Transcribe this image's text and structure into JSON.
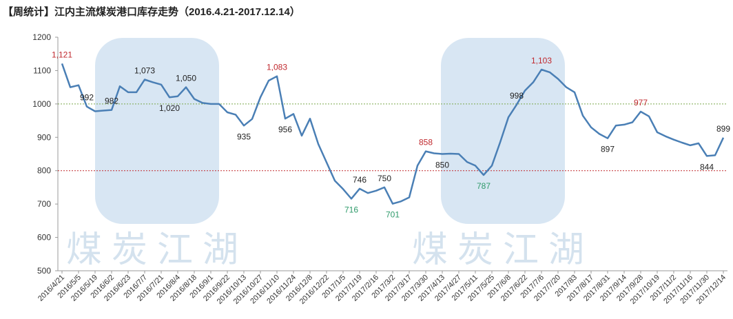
{
  "chart_data": {
    "type": "line",
    "title": "【周统计】江内主流煤炭港口库存走势（2016.4.21-2017.12.14）",
    "watermark": "煤炭江湖",
    "categories": [
      "2016/4/21",
      null,
      "2016/5/5",
      null,
      "2016/5/19",
      null,
      "2016/6/2",
      null,
      "2016/6/23",
      null,
      "2016/7/7",
      null,
      "2016/7/21",
      null,
      "2016/8/4",
      null,
      "2016/8/18",
      null,
      "2016/9/1",
      null,
      "2016/9/22",
      null,
      "2016/10/13",
      null,
      "2016/10/27",
      null,
      "2016/11/10",
      null,
      "2016/11/24",
      null,
      "2016/12/8",
      null,
      "2016/12/22",
      null,
      "2017/1/5",
      null,
      "2017/1/19",
      null,
      "2017/2/16",
      null,
      "2017/3/2",
      null,
      "2017/3/17",
      null,
      "2017/3/30",
      null,
      "2017/4/13",
      null,
      "2017/4/27",
      null,
      "2017/5/11",
      null,
      "2017/5/25",
      null,
      "2017/6/8",
      null,
      "2017/6/22",
      null,
      "2017/7/6",
      null,
      "2017/7/20",
      null,
      "2017/83",
      null,
      "2017/8/17",
      null,
      "2017/8/31",
      null,
      "2017/9/14",
      null,
      "2017/9/28",
      null,
      "2017/10/19",
      null,
      "2017/11/2",
      null,
      "2017/11/16",
      null,
      "2017/11/30",
      null,
      "2017/12/14"
    ],
    "values": [
      1121,
      1050,
      1056,
      992,
      978,
      980,
      982,
      1053,
      1035,
      1035,
      1073,
      1065,
      1058,
      1020,
      1023,
      1050,
      1015,
      1003,
      1000,
      1000,
      975,
      968,
      935,
      955,
      1020,
      1070,
      1083,
      956,
      970,
      905,
      956,
      880,
      825,
      770,
      745,
      716,
      746,
      733,
      740,
      750,
      701,
      708,
      720,
      815,
      858,
      852,
      850,
      851,
      850,
      826,
      815,
      787,
      815,
      885,
      960,
      998,
      1040,
      1065,
      1103,
      1095,
      1075,
      1050,
      1035,
      965,
      930,
      910,
      897,
      935,
      938,
      945,
      977,
      963,
      915,
      903,
      893,
      884,
      876,
      882,
      844,
      846,
      899
    ],
    "value_labels": [
      "1,121",
      null,
      null,
      "992",
      null,
      null,
      "982",
      null,
      null,
      null,
      "1,073",
      null,
      null,
      "1,020",
      null,
      "1,050",
      null,
      null,
      null,
      null,
      null,
      null,
      "935",
      null,
      null,
      null,
      "1,083",
      "956",
      null,
      null,
      null,
      null,
      null,
      null,
      null,
      "716",
      "746",
      null,
      null,
      "750",
      "701",
      null,
      null,
      null,
      "858",
      null,
      "850",
      null,
      null,
      null,
      null,
      "787",
      null,
      null,
      null,
      "998",
      null,
      null,
      "1,103",
      null,
      null,
      null,
      null,
      null,
      null,
      null,
      "897",
      null,
      null,
      null,
      "977",
      null,
      null,
      null,
      null,
      null,
      null,
      null,
      "844",
      null,
      "899"
    ],
    "label_colors": [
      "#c0282d",
      null,
      null,
      "#222",
      null,
      null,
      "#222",
      null,
      null,
      null,
      "#222",
      null,
      null,
      "#222",
      null,
      "#222",
      null,
      null,
      null,
      null,
      null,
      null,
      "#222",
      null,
      null,
      null,
      "#c0282d",
      "#222",
      null,
      null,
      null,
      null,
      null,
      null,
      null,
      "#2e9a6a",
      "#222",
      null,
      null,
      "#222",
      "#2e9a6a",
      null,
      null,
      null,
      "#c0282d",
      null,
      "#222",
      null,
      null,
      null,
      null,
      "#2e9a6a",
      null,
      null,
      null,
      "#222",
      null,
      null,
      "#c0282d",
      null,
      null,
      null,
      null,
      null,
      null,
      null,
      "#222",
      null,
      null,
      null,
      "#c0282d",
      null,
      null,
      null,
      null,
      null,
      null,
      null,
      "#222",
      null,
      "#222"
    ],
    "color": "#4a7fb5",
    "ylim": [
      500,
      1200
    ],
    "yticks": [
      500,
      600,
      700,
      800,
      900,
      1000,
      1100,
      1200
    ],
    "ref_lines": [
      {
        "value": 1000,
        "color": "#7aa84a"
      },
      {
        "value": 800,
        "color": "#c0282d"
      }
    ]
  }
}
